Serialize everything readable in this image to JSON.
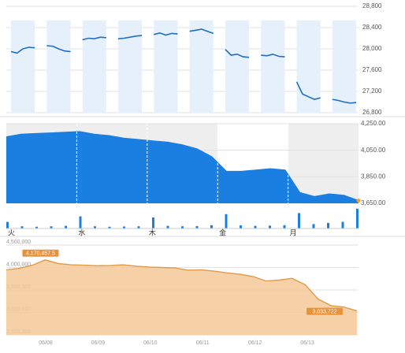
{
  "chart_data": [
    {
      "type": "line",
      "color": "#1f6fc0",
      "band_color": "#e6f0fa",
      "grid": true,
      "values": [
        27950,
        27920,
        28000,
        28030,
        28020,
        null,
        28060,
        28050,
        28000,
        27960,
        27950,
        null,
        28170,
        28200,
        28190,
        28220,
        28210,
        null,
        28190,
        28200,
        28220,
        28240,
        28250,
        null,
        28270,
        28300,
        28260,
        28290,
        28280,
        null,
        28330,
        28350,
        28370,
        28330,
        28290,
        null,
        27990,
        27880,
        27900,
        27850,
        27840,
        null,
        27880,
        27870,
        27900,
        27860,
        27850,
        null,
        27380,
        27150,
        27100,
        27050,
        27080,
        null,
        27050,
        27030,
        27000,
        26980,
        26990
      ],
      "ylim": [
        26800,
        28800
      ],
      "yticks": [
        {
          "value": 26800,
          "label": "26,800"
        },
        {
          "value": 27200,
          "label": "27,200"
        },
        {
          "value": 27600,
          "label": "27,600"
        },
        {
          "value": 28000,
          "label": "28,000"
        },
        {
          "value": 28400,
          "label": "28,400"
        },
        {
          "value": 28800,
          "label": "28,800"
        }
      ]
    },
    {
      "type": "area",
      "color": "#1a7fe0",
      "end_color": "#f0a030",
      "volume_color": "#1a7fe0",
      "grid": true,
      "x_labels": [
        "火",
        "水",
        "木",
        "金",
        "月"
      ],
      "values": [
        4150,
        4170,
        4175,
        4180,
        4185,
        4190,
        4170,
        4160,
        4140,
        4130,
        4120,
        4110,
        4090,
        4060,
        4000,
        3890,
        3890,
        3900,
        3910,
        3900,
        3730,
        3700,
        3720,
        3710,
        3670
      ],
      "volume": [
        30,
        10,
        8,
        10,
        12,
        55,
        10,
        8,
        9,
        10,
        50,
        12,
        10,
        11,
        15,
        65,
        14,
        12,
        13,
        15,
        70,
        20,
        25,
        30,
        90
      ],
      "ylim": [
        3650,
        4250
      ],
      "yticks": [
        {
          "value": 3650,
          "label": "3,650.00"
        },
        {
          "value": 3850,
          "label": "3,850.00"
        },
        {
          "value": 4050,
          "label": "4,050.00"
        },
        {
          "value": 4250,
          "label": "4,250.00"
        }
      ]
    },
    {
      "type": "area",
      "color": "#e09a4a",
      "fill": "#f4c998",
      "label_color": "#e8923a",
      "grid": true,
      "x_labels": [
        "06/08",
        "06/09",
        "06/10",
        "06/11",
        "06/12",
        "06/13"
      ],
      "values": [
        3950000,
        3980000,
        4050000,
        4170457.5,
        4090000,
        4060000,
        4050000,
        4040000,
        4045000,
        4060000,
        4030000,
        4010000,
        4000000,
        3990000,
        3940000,
        3950000,
        3920000,
        3880000,
        3850000,
        3800000,
        3700000,
        3720000,
        3760000,
        3620000,
        3300000,
        3150000,
        3120000,
        3033722
      ],
      "value_labels": [
        null,
        null,
        null,
        "4,170,457.5",
        null,
        null,
        null,
        null,
        null,
        null,
        null,
        null,
        null,
        null,
        null,
        null,
        null,
        null,
        null,
        null,
        null,
        null,
        null,
        null,
        null,
        null,
        null,
        "3,033,722"
      ],
      "ylim": [
        2500000,
        4500000
      ],
      "yticks": [
        {
          "value": 2500000,
          "label": "2,500,000"
        },
        {
          "value": 3000000,
          "label": "3,000,000"
        },
        {
          "value": 3500000,
          "label": "3,500,000"
        },
        {
          "value": 4000000,
          "label": "4,000,000"
        },
        {
          "value": 4500000,
          "label": "4,500,000"
        }
      ]
    }
  ]
}
